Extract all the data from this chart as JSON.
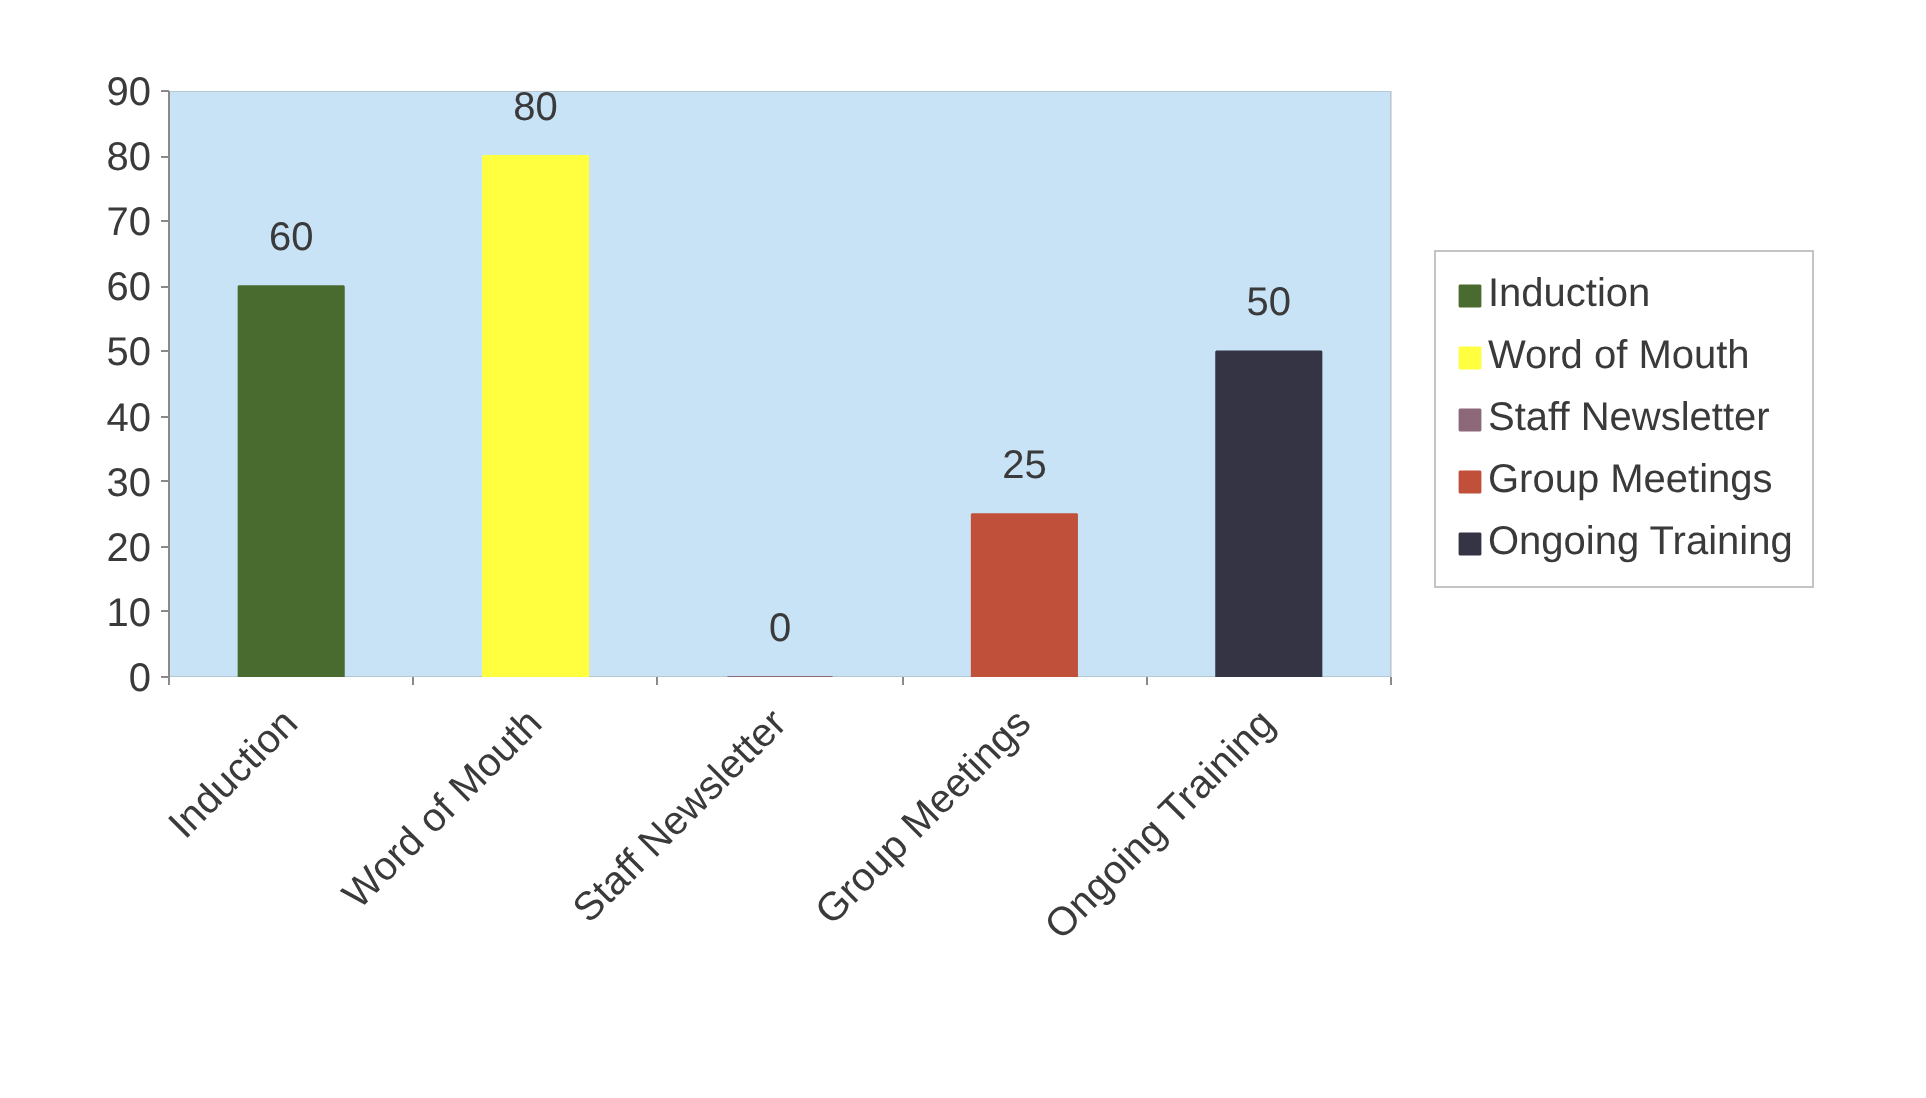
{
  "chart_data": {
    "type": "bar",
    "categories": [
      "Induction",
      "Word of Mouth",
      "Staff Newsletter",
      "Group Meetings",
      "Ongoing Training"
    ],
    "series": [
      {
        "name": "Induction",
        "color": "#4a6b30",
        "values": [
          60,
          null,
          null,
          null,
          null
        ]
      },
      {
        "name": "Word of Mouth",
        "color": "#ffff40",
        "values": [
          null,
          80,
          null,
          null,
          null
        ]
      },
      {
        "name": "Staff Newsletter",
        "color": "#8c6878",
        "values": [
          null,
          null,
          0,
          null,
          null
        ]
      },
      {
        "name": "Group Meetings",
        "color": "#c0503a",
        "values": [
          null,
          null,
          null,
          25,
          null
        ]
      },
      {
        "name": "Ongoing Training",
        "color": "#343445",
        "values": [
          null,
          null,
          null,
          null,
          50
        ]
      }
    ],
    "ylim": [
      0,
      90
    ],
    "yticks": [
      0,
      10,
      20,
      30,
      40,
      50,
      60,
      70,
      80,
      90
    ],
    "data_labels": true,
    "legend": "right",
    "grid": false
  }
}
